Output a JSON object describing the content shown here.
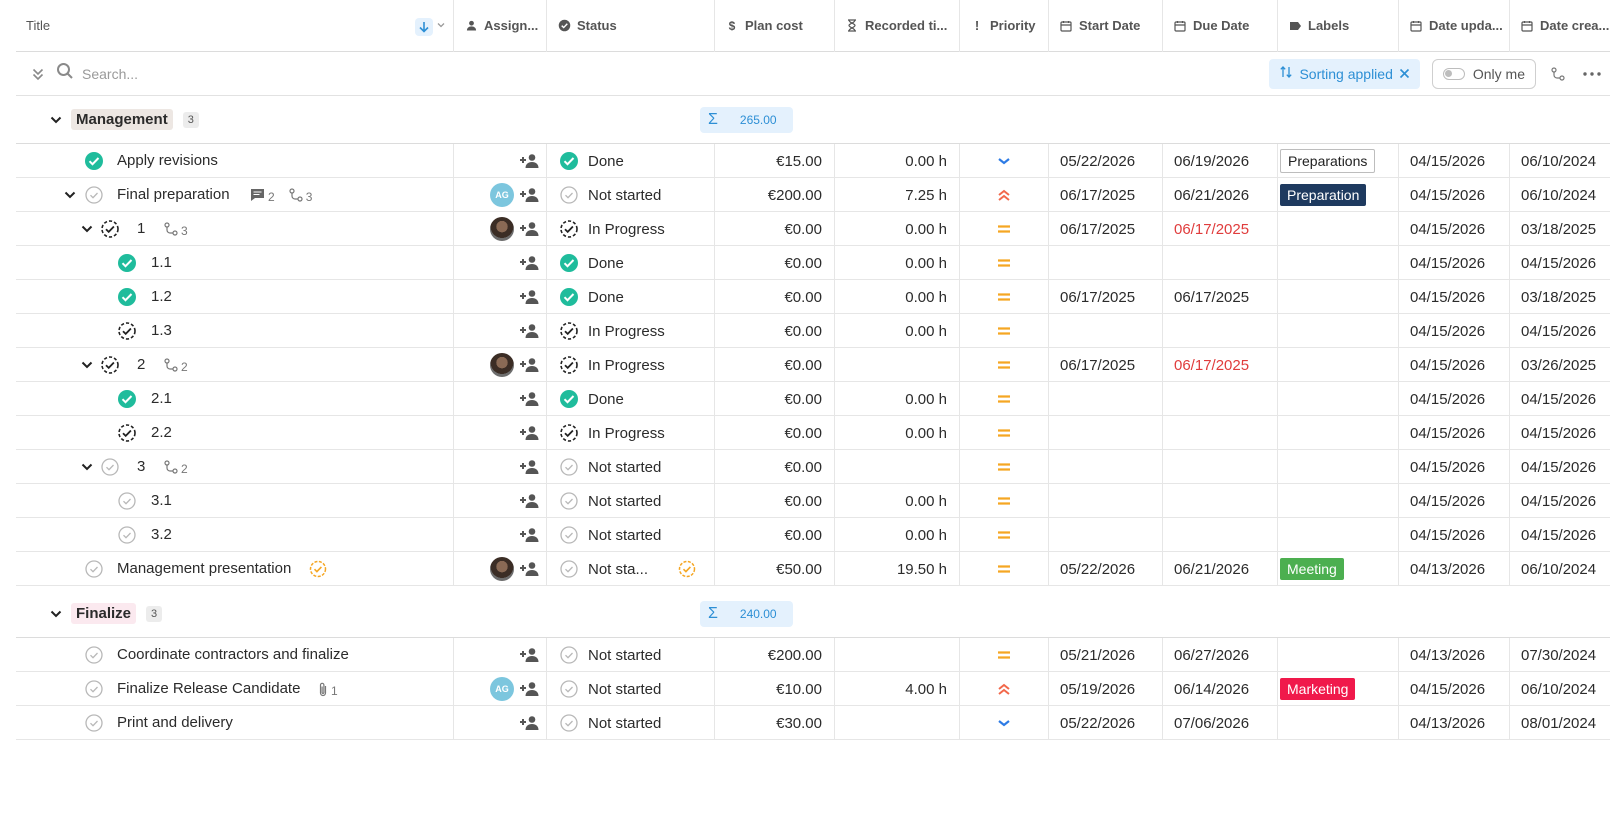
{
  "columns": {
    "title": "Title",
    "assignee": "Assign...",
    "status": "Status",
    "plan_cost": "Plan cost",
    "recorded": "Recorded ti...",
    "priority": "Priority",
    "start": "Start Date",
    "due": "Due Date",
    "labels": "Labels",
    "updated": "Date upda...",
    "created": "Date crea..."
  },
  "toolbar": {
    "search_placeholder": "Search...",
    "sorting_label": "Sorting applied",
    "only_me_label": "Only me"
  },
  "groups": [
    {
      "name": "Management",
      "count": "3",
      "sum": "265.00",
      "name_bg": "#ede7e3",
      "rows": [
        {
          "title": "Apply revisions",
          "status": "Done",
          "status_kind": "done",
          "cost": "€15.00",
          "recorded": "0.00 h",
          "priority": "low",
          "start": "05/22/2026",
          "due": "06/19/2026",
          "due_overdue": false,
          "label": "Preparations",
          "label_style": "outline",
          "updated": "04/15/2026",
          "created": "06/10/2024"
        },
        {
          "title": "Final preparation",
          "comments": "2",
          "subtasks": "3",
          "status": "Not started",
          "status_kind": "not",
          "cost": "€200.00",
          "recorded": "7.25 h",
          "priority": "high",
          "start": "06/17/2025",
          "due": "06/21/2026",
          "due_overdue": false,
          "label": "Preparation",
          "label_style": "dark",
          "updated": "04/15/2026",
          "created": "06/10/2024",
          "avatar": "AG"
        },
        {
          "title": "1",
          "subtasks": "3",
          "status": "In Progress",
          "status_kind": "progress",
          "cost": "€0.00",
          "recorded": "0.00 h",
          "priority": "medium",
          "start": "06/17/2025",
          "due": "06/17/2025",
          "due_overdue": true,
          "label": "",
          "updated": "04/15/2026",
          "created": "03/18/2025"
        },
        {
          "title": "1.1",
          "status": "Done",
          "status_kind": "done",
          "cost": "€0.00",
          "recorded": "0.00 h",
          "priority": "medium",
          "start": "",
          "due": "",
          "due_overdue": false,
          "label": "",
          "updated": "04/15/2026",
          "created": "04/15/2026"
        },
        {
          "title": "1.2",
          "status": "Done",
          "status_kind": "done",
          "cost": "€0.00",
          "recorded": "0.00 h",
          "priority": "medium",
          "start": "06/17/2025",
          "due": "06/17/2025",
          "due_overdue": false,
          "label": "",
          "updated": "04/15/2026",
          "created": "03/18/2025"
        },
        {
          "title": "1.3",
          "status": "In Progress",
          "status_kind": "progress",
          "cost": "€0.00",
          "recorded": "0.00 h",
          "priority": "medium",
          "start": "",
          "due": "",
          "due_overdue": false,
          "label": "",
          "updated": "04/15/2026",
          "created": "04/15/2026"
        },
        {
          "title": "2",
          "subtasks": "2",
          "status": "In Progress",
          "status_kind": "progress",
          "cost": "€0.00",
          "recorded": "",
          "priority": "medium",
          "start": "06/17/2025",
          "due": "06/17/2025",
          "due_overdue": true,
          "label": "",
          "updated": "04/15/2026",
          "created": "03/26/2025"
        },
        {
          "title": "2.1",
          "status": "Done",
          "status_kind": "done",
          "cost": "€0.00",
          "recorded": "0.00 h",
          "priority": "medium",
          "start": "",
          "due": "",
          "due_overdue": false,
          "label": "",
          "updated": "04/15/2026",
          "created": "04/15/2026"
        },
        {
          "title": "2.2",
          "status": "In Progress",
          "status_kind": "progress",
          "cost": "€0.00",
          "recorded": "0.00 h",
          "priority": "medium",
          "start": "",
          "due": "",
          "due_overdue": false,
          "label": "",
          "updated": "04/15/2026",
          "created": "04/15/2026"
        },
        {
          "title": "3",
          "subtasks": "2",
          "status": "Not started",
          "status_kind": "not",
          "cost": "€0.00",
          "recorded": "",
          "priority": "medium",
          "start": "",
          "due": "",
          "due_overdue": false,
          "label": "",
          "updated": "04/15/2026",
          "created": "04/15/2026"
        },
        {
          "title": "3.1",
          "status": "Not started",
          "status_kind": "not",
          "cost": "€0.00",
          "recorded": "0.00 h",
          "priority": "medium",
          "start": "",
          "due": "",
          "due_overdue": false,
          "label": "",
          "updated": "04/15/2026",
          "created": "04/15/2026"
        },
        {
          "title": "3.2",
          "status": "Not started",
          "status_kind": "not",
          "cost": "€0.00",
          "recorded": "0.00 h",
          "priority": "medium",
          "start": "",
          "due": "",
          "due_overdue": false,
          "label": "",
          "updated": "04/15/2026",
          "created": "04/15/2026"
        },
        {
          "title": "Management presentation",
          "status": "Not sta...",
          "status_kind": "not",
          "cost": "€50.00",
          "recorded": "19.50 h",
          "priority": "medium",
          "start": "05/22/2026",
          "due": "06/21/2026",
          "due_overdue": false,
          "label": "Meeting",
          "label_style": "green",
          "updated": "04/13/2026",
          "created": "06/10/2024"
        }
      ]
    },
    {
      "name": "Finalize",
      "count": "3",
      "sum": "240.00",
      "name_bg": "#fbe9ef",
      "rows": [
        {
          "title": "Coordinate contractors and finalize",
          "status": "Not started",
          "status_kind": "not",
          "cost": "€200.00",
          "recorded": "",
          "priority": "medium",
          "start": "05/21/2026",
          "due": "06/27/2026",
          "due_overdue": false,
          "label": "",
          "updated": "04/13/2026",
          "created": "07/30/2024"
        },
        {
          "title": "Finalize Release Candidate",
          "attachments": "1",
          "status": "Not started",
          "status_kind": "not",
          "cost": "€10.00",
          "recorded": "4.00 h",
          "priority": "high",
          "start": "05/19/2026",
          "due": "06/14/2026",
          "due_overdue": false,
          "label": "Marketing",
          "label_style": "red",
          "updated": "04/15/2026",
          "created": "06/10/2024",
          "avatar": "AG"
        },
        {
          "title": "Print and delivery",
          "status": "Not started",
          "status_kind": "not",
          "cost": "€30.00",
          "recorded": "",
          "priority": "low",
          "start": "05/22/2026",
          "due": "07/06/2026",
          "due_overdue": false,
          "label": "",
          "updated": "04/13/2026",
          "created": "08/01/2024"
        }
      ]
    }
  ],
  "colors": {
    "accent": "#2d8fd5",
    "done": "#1fbc9c",
    "priority_medium": "#f5a623",
    "priority_high": "#f2684b",
    "priority_low": "#2d7be5",
    "overdue": "#e03c3c"
  }
}
